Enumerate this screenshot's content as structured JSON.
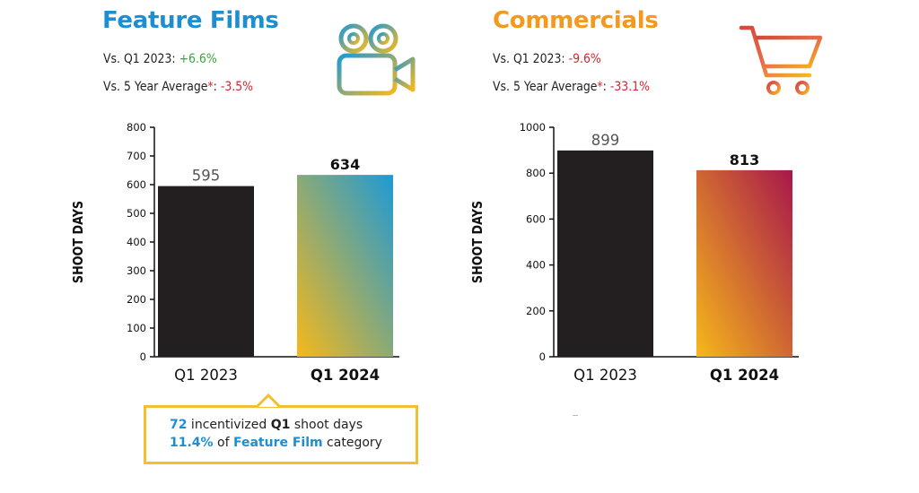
{
  "left": {
    "title": "Feature Films",
    "stat1_label": "Vs. Q1 2023: ",
    "stat1_value": "+6.6%",
    "stat2_label": "Vs. 5 Year Average",
    "stat2_star": "*",
    "stat2_colon": ": ",
    "stat2_value": "-3.5%",
    "icon": "film-camera-icon",
    "colors": {
      "title": "#1e8ed0",
      "positive": "#3aa53a",
      "negative": "#d9232e",
      "bar_2023": "#231f20"
    }
  },
  "right": {
    "title": "Commercials",
    "stat1_label": "Vs. Q1 2023: ",
    "stat1_value": "-9.6%",
    "stat2_label": "Vs. 5 Year Average",
    "stat2_star": "*",
    "stat2_colon": ": ",
    "stat2_value": "-33.1%",
    "icon": "shopping-cart-icon",
    "colors": {
      "title": "#f39a1e",
      "negative": "#d9232e",
      "bar_2023": "#231f20"
    }
  },
  "callout": {
    "line1_num": "72",
    "line1_text1": " incentivized ",
    "line1_bold": "Q1",
    "line1_text2": " shoot days",
    "line2_num": "11.4%",
    "line2_text1": " of ",
    "line2_bold": "Feature Film",
    "line2_text2": " category",
    "border_color": "#f2c02e"
  },
  "chart_data": [
    {
      "type": "bar",
      "categories": [
        "Q1 2023",
        "Q1 2024"
      ],
      "values": [
        595,
        634
      ],
      "value_labels": [
        "595",
        "634"
      ],
      "ylabel": "SHOOT DAYS",
      "ylim": [
        0,
        800
      ],
      "yticks": [
        0,
        100,
        200,
        300,
        400,
        500,
        600,
        700,
        800
      ],
      "grid": false,
      "highlight": "Q1 2024",
      "gradient": [
        "#f6b81a",
        "#1e9ad6"
      ]
    },
    {
      "type": "bar",
      "categories": [
        "Q1 2023",
        "Q1 2024"
      ],
      "values": [
        899,
        813
      ],
      "value_labels": [
        "899",
        "813"
      ],
      "ylabel": "SHOOT DAYS",
      "ylim": [
        0,
        1000
      ],
      "yticks": [
        0,
        200,
        400,
        600,
        800,
        1000
      ],
      "grid": false,
      "highlight": "Q1 2024",
      "gradient": [
        "#f6b81a",
        "#a8174b"
      ]
    }
  ]
}
